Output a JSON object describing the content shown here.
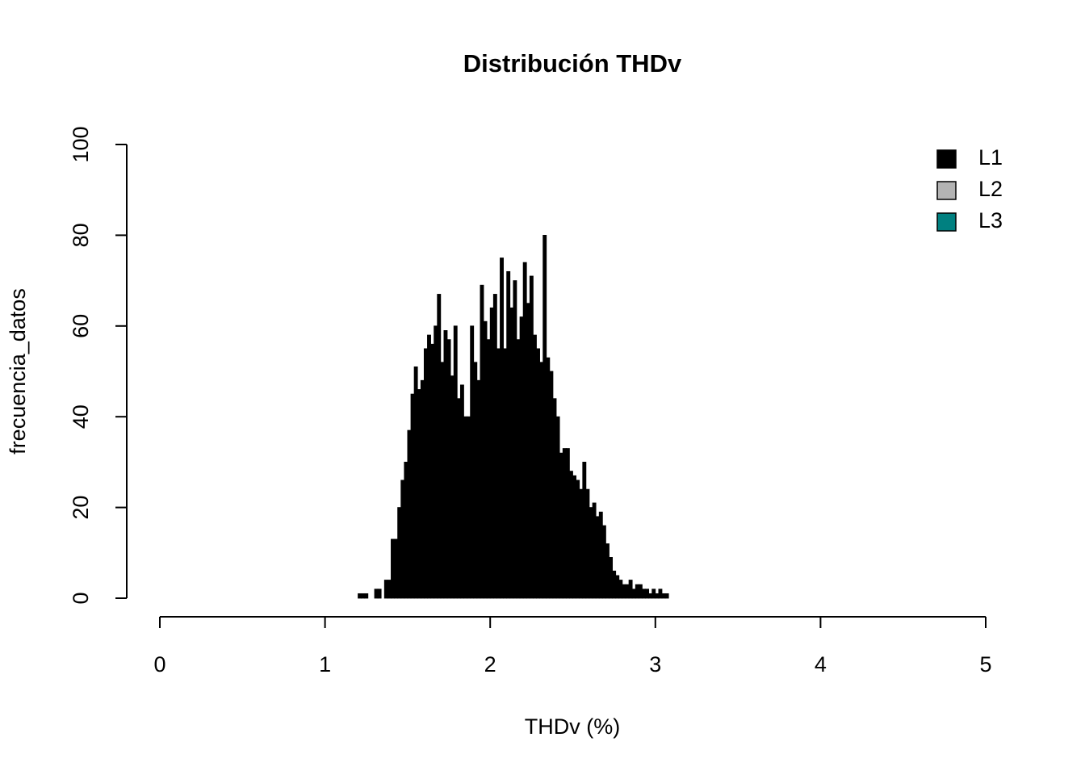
{
  "chart_data": {
    "type": "histogram",
    "title": "Distribución THDv",
    "x_label": "THDv (%)",
    "y_label": "frecuencia_datos",
    "bins": [
      1.2,
      1.22,
      1.24,
      1.26,
      1.28,
      1.3,
      1.32,
      1.34,
      1.36,
      1.38,
      1.4,
      1.42,
      1.44,
      1.46,
      1.48,
      1.5,
      1.52,
      1.54,
      1.56,
      1.58,
      1.6,
      1.62,
      1.64,
      1.66,
      1.68,
      1.7,
      1.72,
      1.74,
      1.76,
      1.78,
      1.8,
      1.82,
      1.84,
      1.86,
      1.88,
      1.9,
      1.92,
      1.94,
      1.96,
      1.98,
      2,
      2.02,
      2.04,
      2.06,
      2.08,
      2.1,
      2.12,
      2.14,
      2.16,
      2.18,
      2.2,
      2.22,
      2.24,
      2.26,
      2.28,
      2.3,
      2.32,
      2.34,
      2.36,
      2.38,
      2.4,
      2.42,
      2.44,
      2.46,
      2.48,
      2.5,
      2.52,
      2.54,
      2.56,
      2.58,
      2.6,
      2.62,
      2.64,
      2.66,
      2.68,
      2.7,
      2.72,
      2.74,
      2.76,
      2.78,
      2.8,
      2.82,
      2.84,
      2.86,
      2.88,
      2.9,
      2.92,
      2.94,
      2.96,
      2.98,
      3,
      3.02,
      3.04,
      3.06,
      3.08
    ],
    "series": [
      {
        "name": "L1",
        "color": "#000000",
        "values": [
          1,
          1,
          1,
          0,
          0,
          2,
          2,
          0,
          4,
          4,
          13,
          13,
          20,
          26,
          30,
          37,
          45,
          51,
          46,
          48,
          55,
          58,
          56,
          60,
          67,
          52,
          59,
          57,
          49,
          60,
          44,
          47,
          40,
          40,
          60,
          52,
          48,
          69,
          61,
          57,
          64,
          67,
          55,
          75,
          55,
          72,
          64,
          70,
          57,
          62,
          74,
          65,
          71,
          58,
          55,
          52,
          80,
          53,
          50,
          44,
          40,
          32,
          33,
          33,
          28,
          27,
          26,
          24,
          30,
          24,
          20,
          21,
          18,
          19,
          16,
          12,
          9,
          6,
          5,
          4,
          3,
          3,
          4,
          2,
          3,
          3,
          2,
          2,
          1,
          2,
          1,
          2,
          1,
          1
        ]
      }
    ],
    "legend_items": [
      {
        "name": "L1",
        "color": "#000000"
      },
      {
        "name": "L2",
        "color": "#b3b3b3"
      },
      {
        "name": "L3",
        "color": "#008080"
      }
    ],
    "legend_position": "top-right",
    "xlim": [
      0,
      5
    ],
    "xticks": [
      0,
      1,
      2,
      3,
      4,
      5
    ],
    "ylim": [
      0,
      100
    ],
    "yticks": [
      0,
      20,
      40,
      60,
      80,
      100
    ]
  }
}
